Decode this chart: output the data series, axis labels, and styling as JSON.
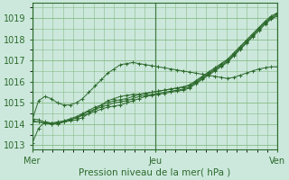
{
  "background_color": "#cce8dc",
  "grid_color": "#88bb88",
  "line_color": "#2d6a2d",
  "marker": "+",
  "xlabel": "Pression niveau de la mer( hPa )",
  "xtick_labels": [
    "Mer",
    "Jeu",
    "Ven"
  ],
  "xtick_positions": [
    0,
    48,
    96
  ],
  "ylim": [
    1012.8,
    1019.7
  ],
  "yticks": [
    1013,
    1014,
    1015,
    1016,
    1017,
    1018,
    1019
  ],
  "xlim": [
    0,
    96
  ],
  "series": [
    [
      1013.1,
      1013.8,
      1014.1,
      1014.05,
      1014.0,
      1014.1,
      1014.15,
      1014.2,
      1014.3,
      1014.5,
      1014.7,
      1014.9,
      1015.1,
      1015.2,
      1015.3,
      1015.35,
      1015.4,
      1015.4,
      1015.45,
      1015.5,
      1015.55,
      1015.6,
      1015.65,
      1015.7,
      1015.75,
      1015.8,
      1016.0,
      1016.2,
      1016.4,
      1016.6,
      1016.8,
      1017.0,
      1017.3,
      1017.6,
      1017.9,
      1018.2,
      1018.5,
      1018.8,
      1019.05,
      1019.2
    ],
    [
      1014.15,
      1014.1,
      1014.05,
      1014.0,
      1014.05,
      1014.1,
      1014.2,
      1014.3,
      1014.4,
      1014.5,
      1014.6,
      1014.7,
      1014.8,
      1014.85,
      1014.9,
      1015.0,
      1015.1,
      1015.2,
      1015.3,
      1015.35,
      1015.4,
      1015.45,
      1015.5,
      1015.55,
      1015.6,
      1015.7,
      1015.9,
      1016.1,
      1016.3,
      1016.5,
      1016.7,
      1016.9,
      1017.2,
      1017.5,
      1017.8,
      1018.1,
      1018.4,
      1018.7,
      1018.95,
      1019.1
    ],
    [
      1014.1,
      1014.1,
      1014.05,
      1014.0,
      1014.05,
      1014.1,
      1014.2,
      1014.3,
      1014.45,
      1014.6,
      1014.7,
      1014.8,
      1014.9,
      1015.0,
      1015.05,
      1015.1,
      1015.2,
      1015.3,
      1015.35,
      1015.4,
      1015.45,
      1015.5,
      1015.55,
      1015.6,
      1015.65,
      1015.75,
      1015.95,
      1016.15,
      1016.35,
      1016.55,
      1016.75,
      1016.95,
      1017.25,
      1017.55,
      1017.85,
      1018.15,
      1018.45,
      1018.75,
      1019.0,
      1019.15
    ],
    [
      1014.2,
      1015.1,
      1015.3,
      1015.2,
      1015.0,
      1014.9,
      1014.9,
      1015.0,
      1015.2,
      1015.5,
      1015.8,
      1016.1,
      1016.4,
      1016.6,
      1016.8,
      1016.85,
      1016.9,
      1016.85,
      1016.8,
      1016.75,
      1016.7,
      1016.65,
      1016.6,
      1016.55,
      1016.5,
      1016.45,
      1016.4,
      1016.35,
      1016.3,
      1016.25,
      1016.2,
      1016.15,
      1016.2,
      1016.3,
      1016.4,
      1016.5,
      1016.6,
      1016.65,
      1016.7,
      1016.7
    ],
    [
      1014.25,
      1014.2,
      1014.1,
      1014.05,
      1014.1,
      1014.15,
      1014.25,
      1014.35,
      1014.5,
      1014.65,
      1014.8,
      1014.9,
      1015.0,
      1015.1,
      1015.15,
      1015.2,
      1015.3,
      1015.4,
      1015.45,
      1015.5,
      1015.55,
      1015.6,
      1015.65,
      1015.7,
      1015.75,
      1015.85,
      1016.05,
      1016.25,
      1016.45,
      1016.65,
      1016.85,
      1017.05,
      1017.35,
      1017.65,
      1017.95,
      1018.25,
      1018.55,
      1018.85,
      1019.1,
      1019.25
    ]
  ]
}
